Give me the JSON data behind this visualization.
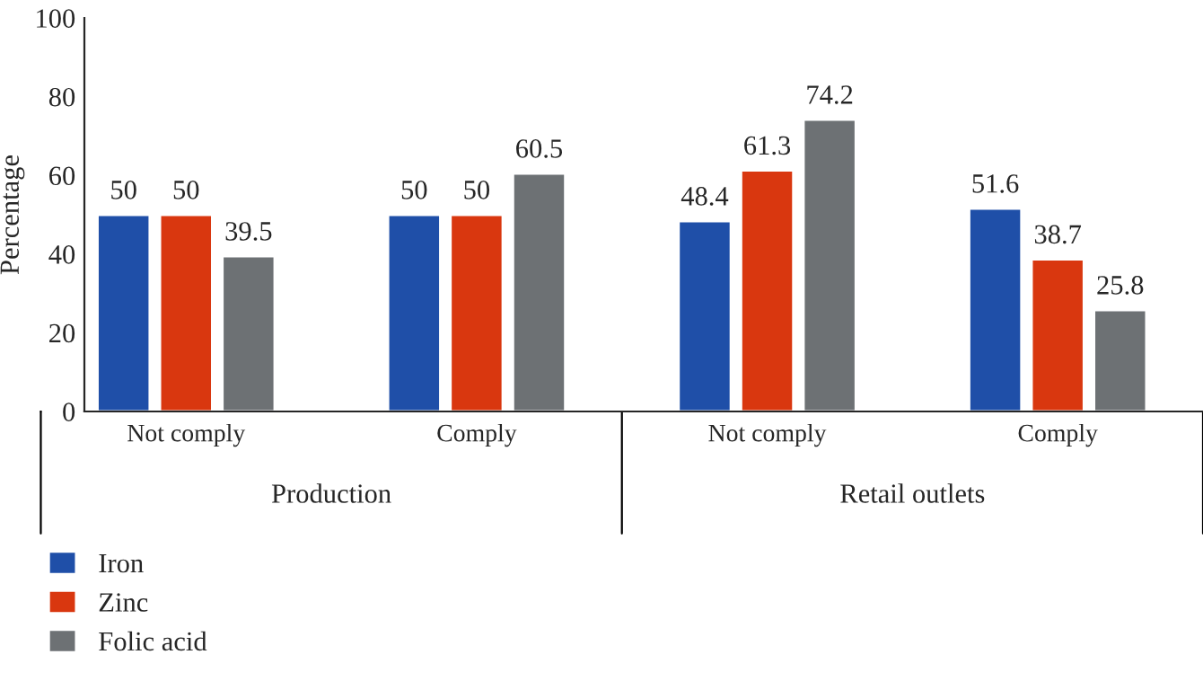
{
  "chart_data": {
    "type": "bar",
    "ylabel": "Percentage",
    "categories": [
      "Not comply",
      "Comply",
      "Not comply",
      "Comply"
    ],
    "series": [
      {
        "name": "Iron",
        "color": "#1f4fa8",
        "values": [
          50,
          50,
          48.4,
          51.6
        ]
      },
      {
        "name": "Zinc",
        "color": "#d9370f",
        "values": [
          50,
          50,
          61.3,
          38.7
        ]
      },
      {
        "name": "Folic acid",
        "color": "#6d7174",
        "values": [
          39.5,
          60.5,
          74.2,
          25.8
        ]
      }
    ],
    "annotations": [
      "Production",
      "Retail outlets"
    ],
    "ylim": [
      0,
      100
    ],
    "yticks": [
      0,
      20,
      40,
      60,
      80,
      100
    ],
    "data_labels": true,
    "grid": false,
    "legend": "bottom left"
  }
}
